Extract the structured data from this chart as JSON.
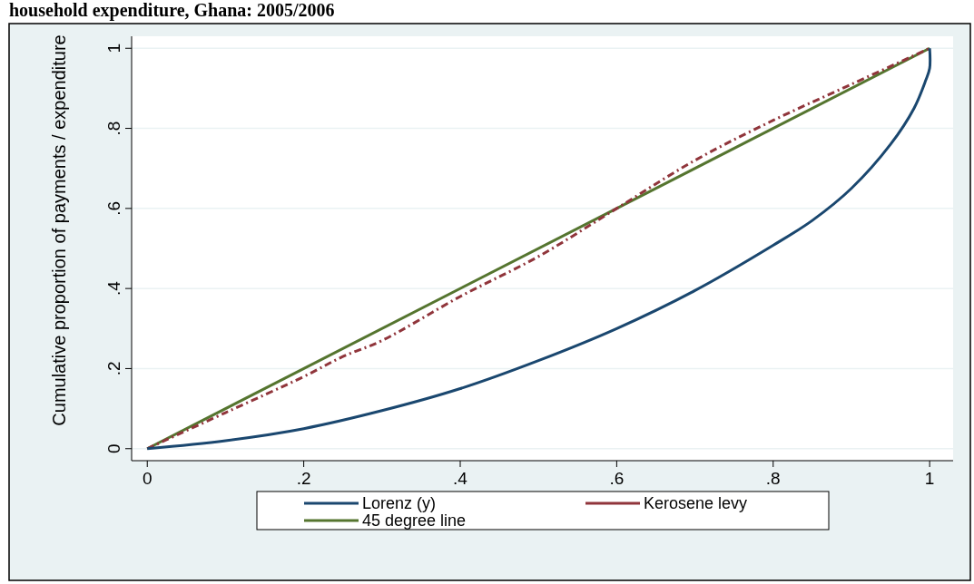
{
  "chart_data": {
    "type": "line",
    "title": "household expenditure, Ghana: 2005/2006",
    "ylabel": "Cumulative proportion of payments / expenditure",
    "xlim": [
      -0.02,
      1.03
    ],
    "ylim": [
      -0.03,
      1.03
    ],
    "xticks": [
      {
        "value": 0,
        "label": "0"
      },
      {
        "value": 0.2,
        "label": ".2"
      },
      {
        "value": 0.4,
        "label": ".4"
      },
      {
        "value": 0.6,
        "label": ".6"
      },
      {
        "value": 0.8,
        "label": ".8"
      },
      {
        "value": 1,
        "label": "1"
      }
    ],
    "yticks": [
      {
        "value": 0,
        "label": "0"
      },
      {
        "value": 0.2,
        "label": ".2"
      },
      {
        "value": 0.4,
        "label": ".4"
      },
      {
        "value": 0.6,
        "label": ".6"
      },
      {
        "value": 0.8,
        "label": ".8"
      },
      {
        "value": 1,
        "label": "1"
      }
    ],
    "grid": "y",
    "legend": "bottom",
    "series": [
      {
        "name": "Lorenz (y)",
        "color": "#1a476f",
        "line_style": "solid",
        "x": [
          0,
          0.1,
          0.2,
          0.3,
          0.4,
          0.5,
          0.6,
          0.7,
          0.8,
          0.85,
          0.9,
          0.95,
          0.98,
          0.995,
          1,
          1
        ],
        "values": [
          0,
          0.02,
          0.05,
          0.095,
          0.15,
          0.22,
          0.3,
          0.395,
          0.508,
          0.57,
          0.65,
          0.76,
          0.85,
          0.92,
          0.95,
          1
        ]
      },
      {
        "name": "Kerosene levy",
        "color": "#90353b",
        "line_style": "dashed",
        "x": [
          0,
          0.1,
          0.2,
          0.25,
          0.3,
          0.4,
          0.5,
          0.6,
          0.7,
          0.8,
          0.9,
          1
        ],
        "values": [
          0,
          0.09,
          0.18,
          0.23,
          0.27,
          0.38,
          0.48,
          0.6,
          0.72,
          0.82,
          0.91,
          1
        ]
      },
      {
        "name": "45 degree line",
        "color": "#55752f",
        "line_style": "solid",
        "x": [
          0,
          1
        ],
        "values": [
          0,
          1
        ]
      }
    ]
  }
}
